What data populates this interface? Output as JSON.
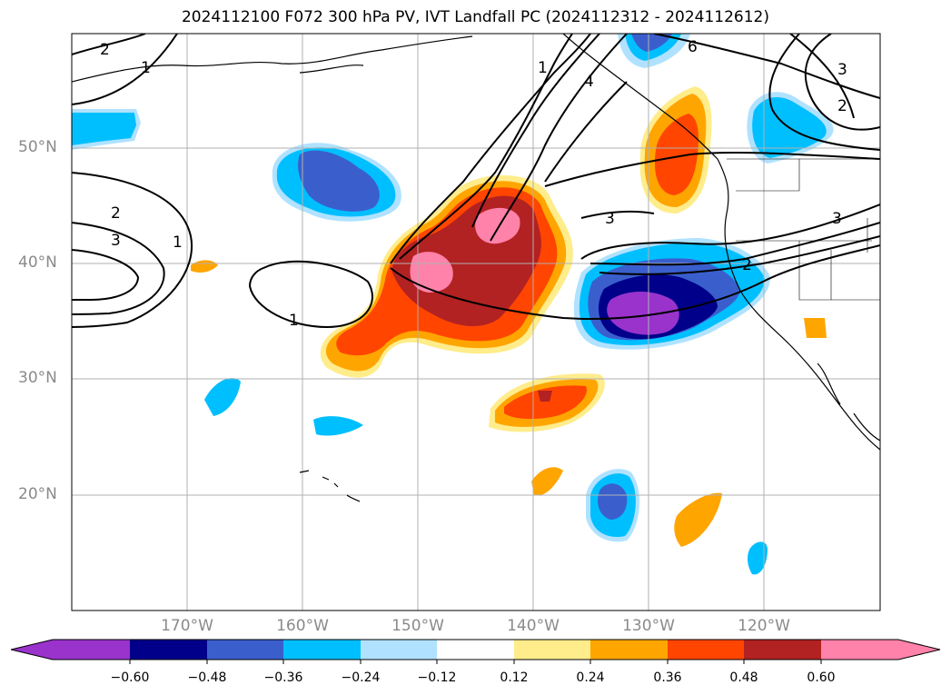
{
  "title": "2024112100 F072 300 hPa PV, IVT Landfall PC (2024112312 - 2024112612)",
  "map": {
    "lat_labels": [
      "50°N",
      "40°N",
      "30°N",
      "20°N"
    ],
    "lon_labels": [
      "170°W",
      "160°W",
      "150°W",
      "140°W",
      "130°W",
      "120°W"
    ],
    "contour_labels": [
      "2",
      "1",
      "2",
      "3",
      "1",
      "1",
      "1",
      "4",
      "6",
      "3",
      "2",
      "3",
      "3",
      "2"
    ]
  },
  "colorbar": {
    "ticks": [
      "−0.60",
      "−0.48",
      "−0.36",
      "−0.24",
      "−0.12",
      "0.12",
      "0.24",
      "0.36",
      "0.48",
      "0.60"
    ],
    "colors": [
      "#9933cc",
      "#00008b",
      "#3a5fcd",
      "#00bfff",
      "#b0e2ff",
      "#ffffff",
      "#ffec8b",
      "#ffa500",
      "#ff4500",
      "#b22222",
      "#ff82ab"
    ]
  },
  "shading_colors": {
    "neg_strong": "#9933cc",
    "neg_navy": "#00008b",
    "neg_blue": "#3a5fcd",
    "neg_sky": "#00bfff",
    "neg_light": "#b0e2ff",
    "pos_light": "#ffec8b",
    "pos_orange": "#ffa500",
    "pos_red": "#ff4500",
    "pos_dark": "#b22222",
    "pos_pink": "#ff82ab"
  }
}
